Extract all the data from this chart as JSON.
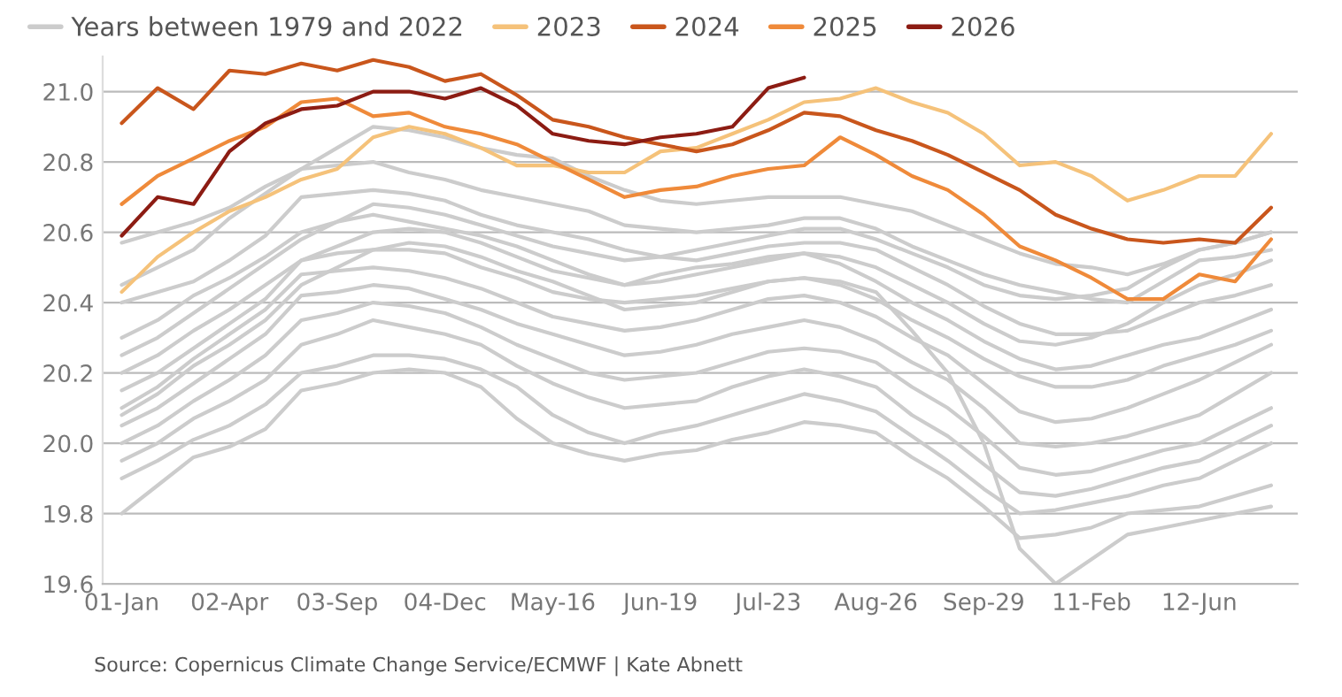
{
  "chart_data": {
    "type": "line",
    "annotations": [
      "Source: Copernicus Climate Change Service/ECMWF | Kate Abnett"
    ],
    "categories": [
      "01-Jan",
      null,
      null,
      "02-Apr",
      null,
      null,
      "03-Sep",
      null,
      null,
      "04-Dec",
      null,
      null,
      "May-16",
      null,
      null,
      "Jun-19",
      null,
      null,
      "Jul-23",
      null,
      null,
      "Aug-26",
      null,
      null,
      "Sep-29",
      null,
      null,
      "11-Feb",
      null,
      null,
      "12-Jun",
      null,
      null
    ],
    "ylim": [
      19.6,
      21.1
    ],
    "yticks": [
      19.6,
      19.8,
      {
        "value": 20.0,
        "label": "20.0"
      },
      20.2,
      20.4,
      20.6,
      20.8,
      {
        "value": 21.0,
        "label": "21.0"
      }
    ],
    "grid": "y",
    "legend": "top left",
    "marker": "none",
    "line_style": "solid",
    "series": [
      {
        "name": "Years between 1979 and 2022",
        "color": "#cccccc",
        "values": [
          20.57,
          20.6,
          20.63,
          20.67,
          20.73,
          20.78,
          20.84,
          20.9,
          20.89,
          20.87,
          20.84,
          20.82,
          20.81,
          20.76,
          20.72,
          20.69,
          20.68,
          20.69,
          20.7,
          20.7,
          20.7,
          20.68,
          20.66,
          20.62,
          20.58,
          20.54,
          20.51,
          20.5,
          20.48,
          20.51,
          20.55,
          20.57,
          20.6
        ]
      },
      {
        "color": "#cccccc",
        "values": [
          20.45,
          20.5,
          20.55,
          20.64,
          20.71,
          20.78,
          20.79,
          20.8,
          20.77,
          20.75,
          20.72,
          20.7,
          20.68,
          20.66,
          20.62,
          20.61,
          20.6,
          20.61,
          20.62,
          20.64,
          20.64,
          20.61,
          20.56,
          20.52,
          20.48,
          20.45,
          20.43,
          20.41,
          20.4,
          20.46,
          20.52,
          20.53,
          20.55
        ]
      },
      {
        "color": "#cccccc",
        "values": [
          20.4,
          20.43,
          20.46,
          20.52,
          20.59,
          20.7,
          20.71,
          20.72,
          20.71,
          20.69,
          20.65,
          20.62,
          20.6,
          20.58,
          20.55,
          20.53,
          20.52,
          20.54,
          20.56,
          20.57,
          20.57,
          20.55,
          20.5,
          20.45,
          20.39,
          20.34,
          20.31,
          20.31,
          20.32,
          20.36,
          20.4,
          20.42,
          20.45
        ]
      },
      {
        "color": "#cccccc",
        "values": [
          20.3,
          20.35,
          20.42,
          20.47,
          20.53,
          20.6,
          20.63,
          20.65,
          20.63,
          20.61,
          20.59,
          20.56,
          20.52,
          20.48,
          20.45,
          20.48,
          20.5,
          20.51,
          20.53,
          20.54,
          20.51,
          20.46,
          20.4,
          20.35,
          20.29,
          20.24,
          20.21,
          20.22,
          20.25,
          20.28,
          20.3,
          20.34,
          20.38
        ]
      },
      {
        "color": "#cccccc",
        "values": [
          20.2,
          20.25,
          20.32,
          20.38,
          20.45,
          20.52,
          20.54,
          20.55,
          20.55,
          20.54,
          20.5,
          20.47,
          20.43,
          20.41,
          20.4,
          20.41,
          20.42,
          20.44,
          20.46,
          20.47,
          20.45,
          20.41,
          20.35,
          20.3,
          20.24,
          20.19,
          20.16,
          20.16,
          20.18,
          20.22,
          20.25,
          20.28,
          20.32
        ]
      },
      {
        "color": "#cccccc",
        "values": [
          20.1,
          20.16,
          20.24,
          20.31,
          20.38,
          20.48,
          20.49,
          20.5,
          20.49,
          20.47,
          20.44,
          20.4,
          20.36,
          20.34,
          20.32,
          20.33,
          20.35,
          20.38,
          20.41,
          20.42,
          20.4,
          20.36,
          20.3,
          20.25,
          20.17,
          20.09,
          20.06,
          20.07,
          20.1,
          20.14,
          20.18,
          20.23,
          20.28
        ]
      },
      {
        "color": "#cccccc",
        "values": [
          20.05,
          20.1,
          20.17,
          20.24,
          20.31,
          20.42,
          20.43,
          20.45,
          20.44,
          20.41,
          20.38,
          20.34,
          20.31,
          20.28,
          20.25,
          20.26,
          20.28,
          20.31,
          20.33,
          20.35,
          20.33,
          20.29,
          20.23,
          20.18,
          20.1,
          20.0,
          19.99,
          20.0,
          20.02,
          20.05,
          20.08,
          20.14,
          20.2
        ]
      },
      {
        "color": "#cccccc",
        "values": [
          20.0,
          20.05,
          20.12,
          20.18,
          20.25,
          20.35,
          20.37,
          20.4,
          20.39,
          20.37,
          20.33,
          20.28,
          20.24,
          20.2,
          20.18,
          20.19,
          20.2,
          20.23,
          20.26,
          20.27,
          20.26,
          20.23,
          20.16,
          20.1,
          20.02,
          19.93,
          19.91,
          19.92,
          19.95,
          19.98,
          20.0,
          20.05,
          20.1
        ]
      },
      {
        "color": "#cccccc",
        "values": [
          19.95,
          20.0,
          20.07,
          20.12,
          20.18,
          20.28,
          20.31,
          20.35,
          20.33,
          20.31,
          20.28,
          20.22,
          20.17,
          20.13,
          20.1,
          20.11,
          20.12,
          20.16,
          20.19,
          20.21,
          20.19,
          20.16,
          20.08,
          20.02,
          19.94,
          19.86,
          19.85,
          19.87,
          19.9,
          19.93,
          19.95,
          20.0,
          20.05
        ]
      },
      {
        "color": "#cccccc",
        "values": [
          19.9,
          19.95,
          20.01,
          20.05,
          20.11,
          20.2,
          20.22,
          20.25,
          20.25,
          20.24,
          20.21,
          20.16,
          20.08,
          20.03,
          20.0,
          20.03,
          20.05,
          20.08,
          20.11,
          20.14,
          20.12,
          20.09,
          20.02,
          19.95,
          19.87,
          19.8,
          19.81,
          19.83,
          19.85,
          19.88,
          19.9,
          19.95,
          20.0
        ]
      },
      {
        "color": "#cccccc",
        "values": [
          19.8,
          19.88,
          19.96,
          19.99,
          20.04,
          20.15,
          20.17,
          20.2,
          20.21,
          20.2,
          20.16,
          20.07,
          20.0,
          19.97,
          19.95,
          19.97,
          19.98,
          20.01,
          20.03,
          20.06,
          20.05,
          20.03,
          19.96,
          19.9,
          19.82,
          19.73,
          19.74,
          19.76,
          19.8,
          19.81,
          19.82,
          19.85,
          19.88
        ]
      },
      {
        "color": "#cccccc",
        "values": [
          20.08,
          20.14,
          20.22,
          20.28,
          20.35,
          20.45,
          20.5,
          20.55,
          20.57,
          20.56,
          20.53,
          20.49,
          20.46,
          20.42,
          20.38,
          20.39,
          20.4,
          20.43,
          20.46,
          20.47,
          20.46,
          20.43,
          20.32,
          20.2,
          20.0,
          19.7,
          19.6,
          19.67,
          19.74,
          19.76,
          19.78,
          19.8,
          19.82
        ]
      },
      {
        "color": "#cccccc",
        "values": [
          20.15,
          20.2,
          20.27,
          20.34,
          20.41,
          20.52,
          20.56,
          20.6,
          20.61,
          20.6,
          20.57,
          20.53,
          20.49,
          20.47,
          20.45,
          20.46,
          20.48,
          20.5,
          20.52,
          20.54,
          20.53,
          20.5,
          20.45,
          20.4,
          20.34,
          20.29,
          20.28,
          20.3,
          20.34,
          20.4,
          20.45,
          20.48,
          20.52
        ]
      },
      {
        "color": "#cccccc",
        "values": [
          20.25,
          20.3,
          20.37,
          20.44,
          20.51,
          20.58,
          20.63,
          20.68,
          20.67,
          20.65,
          20.62,
          20.59,
          20.56,
          20.54,
          20.52,
          20.53,
          20.55,
          20.57,
          20.59,
          20.61,
          20.61,
          20.58,
          20.54,
          20.5,
          20.45,
          20.42,
          20.41,
          20.42,
          20.44,
          20.5,
          20.55,
          20.57,
          20.6
        ]
      },
      {
        "name": "2023",
        "color": "#f5c27a",
        "values": [
          20.43,
          20.53,
          20.6,
          20.66,
          20.7,
          20.75,
          20.78,
          20.87,
          20.9,
          20.88,
          20.84,
          20.79,
          20.79,
          20.77,
          20.77,
          20.83,
          20.84,
          20.88,
          20.92,
          20.97,
          20.98,
          21.01,
          20.97,
          20.94,
          20.88,
          20.79,
          20.8,
          20.76,
          20.69,
          20.72,
          20.76,
          20.76,
          20.88
        ]
      },
      {
        "name": "2024",
        "color": "#c9561c",
        "values": [
          20.91,
          21.01,
          20.95,
          21.06,
          21.05,
          21.08,
          21.06,
          21.09,
          21.07,
          21.03,
          21.05,
          20.99,
          20.92,
          20.9,
          20.87,
          20.85,
          20.83,
          20.85,
          20.89,
          20.94,
          20.93,
          20.89,
          20.86,
          20.82,
          20.77,
          20.72,
          20.65,
          20.61,
          20.58,
          20.57,
          20.58,
          20.57,
          20.67
        ]
      },
      {
        "name": "2025",
        "color": "#ef8a3a",
        "values": [
          20.68,
          20.76,
          20.81,
          20.86,
          20.9,
          20.97,
          20.98,
          20.93,
          20.94,
          20.9,
          20.88,
          20.85,
          20.8,
          20.75,
          20.7,
          20.72,
          20.73,
          20.76,
          20.78,
          20.79,
          20.87,
          20.82,
          20.76,
          20.72,
          20.65,
          20.56,
          20.52,
          20.47,
          20.41,
          20.41,
          20.48,
          20.46,
          20.58
        ]
      },
      {
        "name": "2026",
        "color": "#8c1c13",
        "values": [
          20.59,
          20.7,
          20.68,
          20.83,
          20.91,
          20.95,
          20.96,
          21.0,
          21.0,
          20.98,
          21.01,
          20.96,
          20.88,
          20.86,
          20.85,
          20.87,
          20.88,
          20.9,
          21.01,
          21.04,
          null,
          null,
          null,
          null,
          null,
          null,
          null,
          null,
          null,
          null,
          null,
          null,
          null
        ]
      }
    ]
  }
}
